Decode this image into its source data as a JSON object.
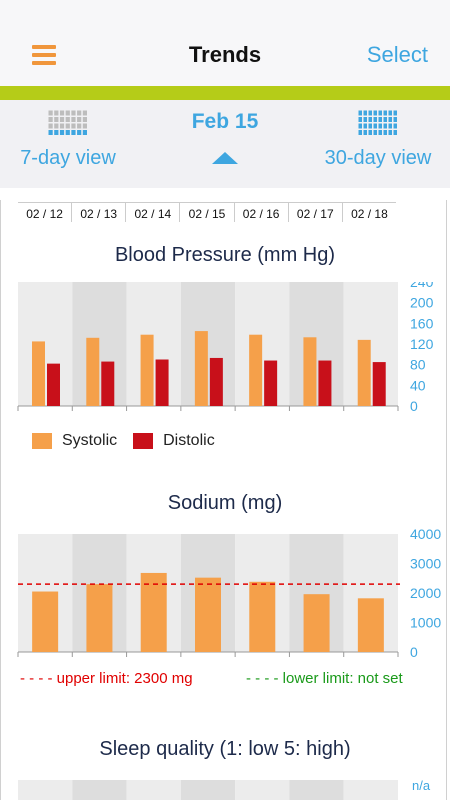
{
  "header": {
    "title": "Trends",
    "select_label": "Select",
    "menu_icon": "hamburger-menu-icon"
  },
  "viewbar": {
    "left_label": "7-day view",
    "right_label": "30-day view",
    "current_date": "Feb 15"
  },
  "dates": [
    "02 / 12",
    "02 / 13",
    "02 / 14",
    "02 / 15",
    "02 / 16",
    "02 / 17",
    "02 / 18"
  ],
  "colors": {
    "accent": "#3ea6e0",
    "orange": "#f5a04a",
    "red": "#c8101a",
    "green_bar": "#b5cc18",
    "upper_limit": "#e00000",
    "lower_limit": "#1a9a1a"
  },
  "bp_chart": {
    "title": "Blood Pressure (mm Hg)",
    "legend": {
      "systolic": "Systolic",
      "distolic": "Distolic"
    }
  },
  "sodium_chart": {
    "title": "Sodium (mg)",
    "upper_limit_text": "- - - - upper limit: 2300 mg",
    "lower_limit_text": "- - - - lower limit: not set"
  },
  "sleep_chart": {
    "title": "Sleep quality (1: low 5: high)",
    "partial_axis_label": "n/a"
  },
  "chart_data": [
    {
      "type": "bar",
      "title": "Blood Pressure (mm Hg)",
      "categories": [
        "02 / 12",
        "02 / 13",
        "02 / 14",
        "02 / 15",
        "02 / 16",
        "02 / 17",
        "02 / 18"
      ],
      "series": [
        {
          "name": "Systolic",
          "values": [
            125,
            132,
            138,
            145,
            138,
            133,
            128
          ]
        },
        {
          "name": "Distolic",
          "values": [
            82,
            86,
            90,
            93,
            88,
            88,
            85
          ]
        }
      ],
      "ylim": [
        0,
        240
      ],
      "yticks": [
        "240",
        "200",
        "160",
        "120",
        "80",
        "40",
        "0"
      ]
    },
    {
      "type": "bar",
      "title": "Sodium (mg)",
      "categories": [
        "02 / 12",
        "02 / 13",
        "02 / 14",
        "02 / 15",
        "02 / 16",
        "02 / 17",
        "02 / 18"
      ],
      "series": [
        {
          "values": [
            2050,
            2300,
            2680,
            2520,
            2380,
            1960,
            1820
          ]
        }
      ],
      "upper_limit": 2300,
      "ylim": [
        0,
        4000
      ],
      "yticks": [
        "4000",
        "3000",
        "2000",
        "1000",
        "0"
      ]
    }
  ]
}
